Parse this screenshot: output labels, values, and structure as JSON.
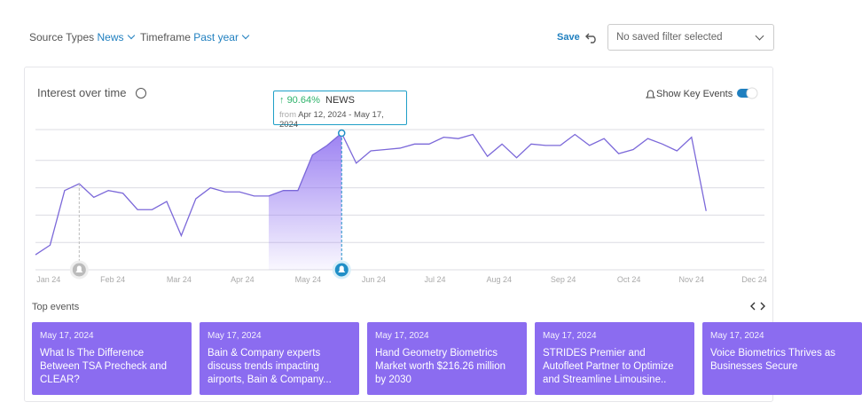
{
  "header": {
    "source_label": "Source Types",
    "source_value": "News",
    "timeframe_label": "Timeframe",
    "timeframe_value": "Past year",
    "save": "Save",
    "filter": "No saved filter selected"
  },
  "panel": {
    "title": "Interest over time",
    "key_events_toggle": "Show Key Events"
  },
  "tooltip": {
    "change": "90.64%",
    "source": "NEWS",
    "from": "from",
    "range": "Apr 12, 2024 - May 17, 2024"
  },
  "chart_data": {
    "type": "line",
    "x": [
      0,
      1,
      2,
      3,
      4,
      5,
      6,
      7,
      8,
      9,
      10,
      11,
      12,
      13,
      14,
      15,
      16,
      17,
      18,
      19,
      20,
      21,
      22,
      23,
      24,
      25,
      26,
      27,
      28,
      29,
      30,
      31,
      32,
      33,
      34,
      35,
      36,
      37,
      38,
      39,
      40,
      41,
      42,
      43,
      44,
      45,
      46
    ],
    "series": [
      {
        "name": "NEWS",
        "color": "#7b68d9",
        "values": [
          11,
          18,
          58,
          63,
          53,
          58,
          56,
          44,
          44,
          50,
          25,
          52,
          60,
          57,
          57,
          54,
          54,
          58,
          58,
          84,
          91,
          100,
          78,
          87,
          88,
          89,
          92,
          92,
          97,
          96,
          99,
          83,
          92,
          82,
          92,
          91,
          91,
          99,
          91,
          96,
          85,
          88,
          96,
          92,
          87,
          97,
          43
        ]
      }
    ],
    "xlim": [
      0,
      50
    ],
    "ylim": [
      0,
      100
    ],
    "xticks": [
      {
        "value": 0.9,
        "label": "Jan 24"
      },
      {
        "value": 5.3,
        "label": "Feb 24"
      },
      {
        "value": 9.85,
        "label": "Mar 24"
      },
      {
        "value": 14.2,
        "label": "Apr 24"
      },
      {
        "value": 18.7,
        "label": "May 24"
      },
      {
        "value": 23.2,
        "label": "Jun 24"
      },
      {
        "value": 27.4,
        "label": "Jul 24"
      },
      {
        "value": 31.8,
        "label": "Aug 24"
      },
      {
        "value": 36.2,
        "label": "Sep 24"
      },
      {
        "value": 40.7,
        "label": "Oct 24"
      },
      {
        "value": 45,
        "label": "Nov 24"
      },
      {
        "value": 49.3,
        "label": "Dec 24"
      }
    ],
    "yticks": [
      20,
      40,
      60,
      80,
      100
    ],
    "grid": true,
    "highlight": [
      16,
      21
    ],
    "key_event_x": [
      3,
      21
    ]
  },
  "events": {
    "title": "Top events",
    "items": [
      {
        "date": "May 17, 2024",
        "text": "What Is The Difference Between TSA Precheck and CLEAR?"
      },
      {
        "date": "May 17, 2024",
        "text": "Bain & Company experts discuss trends impacting airports, Bain & Company..."
      },
      {
        "date": "May 17, 2024",
        "text": "Hand Geometry Biometrics Market worth $216.26 million by 2030"
      },
      {
        "date": "May 17, 2024",
        "text": "STRIDES Premier and Autofleet Partner to Optimize and Streamline Limousine.."
      },
      {
        "date": "May 17, 2024",
        "text": "Voice Biometrics Thrives as Businesses Secure"
      }
    ]
  }
}
